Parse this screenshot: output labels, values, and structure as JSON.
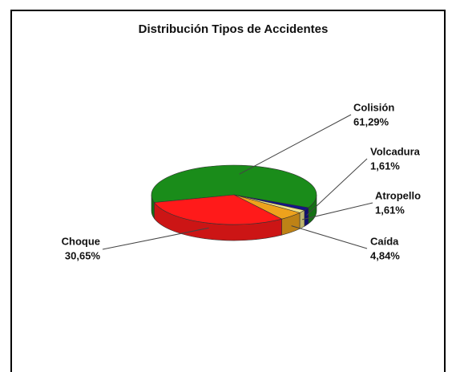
{
  "chart_data": {
    "type": "pie3d",
    "title": "Distribución Tipos de Accidentes",
    "categories": [
      "Colisión",
      "Volcadura",
      "Atropello",
      "Caída",
      "Choque"
    ],
    "values": [
      61.29,
      1.61,
      1.61,
      4.84,
      30.65
    ],
    "value_labels": [
      "61,29%",
      "1,61%",
      "1,61%",
      "4,84%",
      "30,65%"
    ],
    "colors": [
      "#1a8c1a",
      "#14148c",
      "#efe38a",
      "#eea21c",
      "#ff1a1a"
    ]
  }
}
